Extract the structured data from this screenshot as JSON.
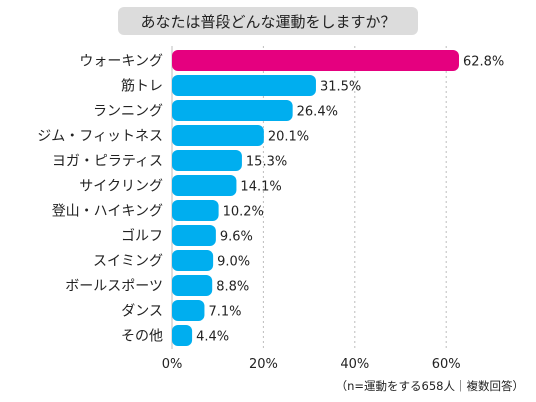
{
  "chart_data": {
    "type": "bar",
    "orientation": "horizontal",
    "title": "あなたは普段どんな運動をしますか？",
    "note": "（n=運動をする658人｜複数回答）",
    "categories": [
      "ウォーキング",
      "筋トレ",
      "ランニング",
      "ジム・フィットネス",
      "ヨガ・ピラティス",
      "サイクリング",
      "登山・ハイキング",
      "ゴルフ",
      "スイミング",
      "ボールスポーツ",
      "ダンス",
      "その他"
    ],
    "values": [
      62.8,
      31.5,
      26.4,
      20.1,
      15.3,
      14.1,
      10.2,
      9.6,
      9.0,
      8.8,
      7.1,
      4.4
    ],
    "value_labels": [
      "62.8%",
      "31.5%",
      "26.4%",
      "20.1%",
      "15.3%",
      "14.1%",
      "10.2%",
      "9.6%",
      "9.0%",
      "8.8%",
      "7.1%",
      "4.4%"
    ],
    "x_ticks": [
      0,
      20,
      40,
      60
    ],
    "x_tick_labels": [
      "0%",
      "20%",
      "40%",
      "60%"
    ],
    "xlim": [
      0,
      70
    ],
    "grid": true,
    "colors": {
      "highlight": "#E5007F",
      "bar": "#00AEEF",
      "title_bg": "#DCDCDC",
      "grid": "#BDBDBD",
      "text": "#222222"
    }
  }
}
